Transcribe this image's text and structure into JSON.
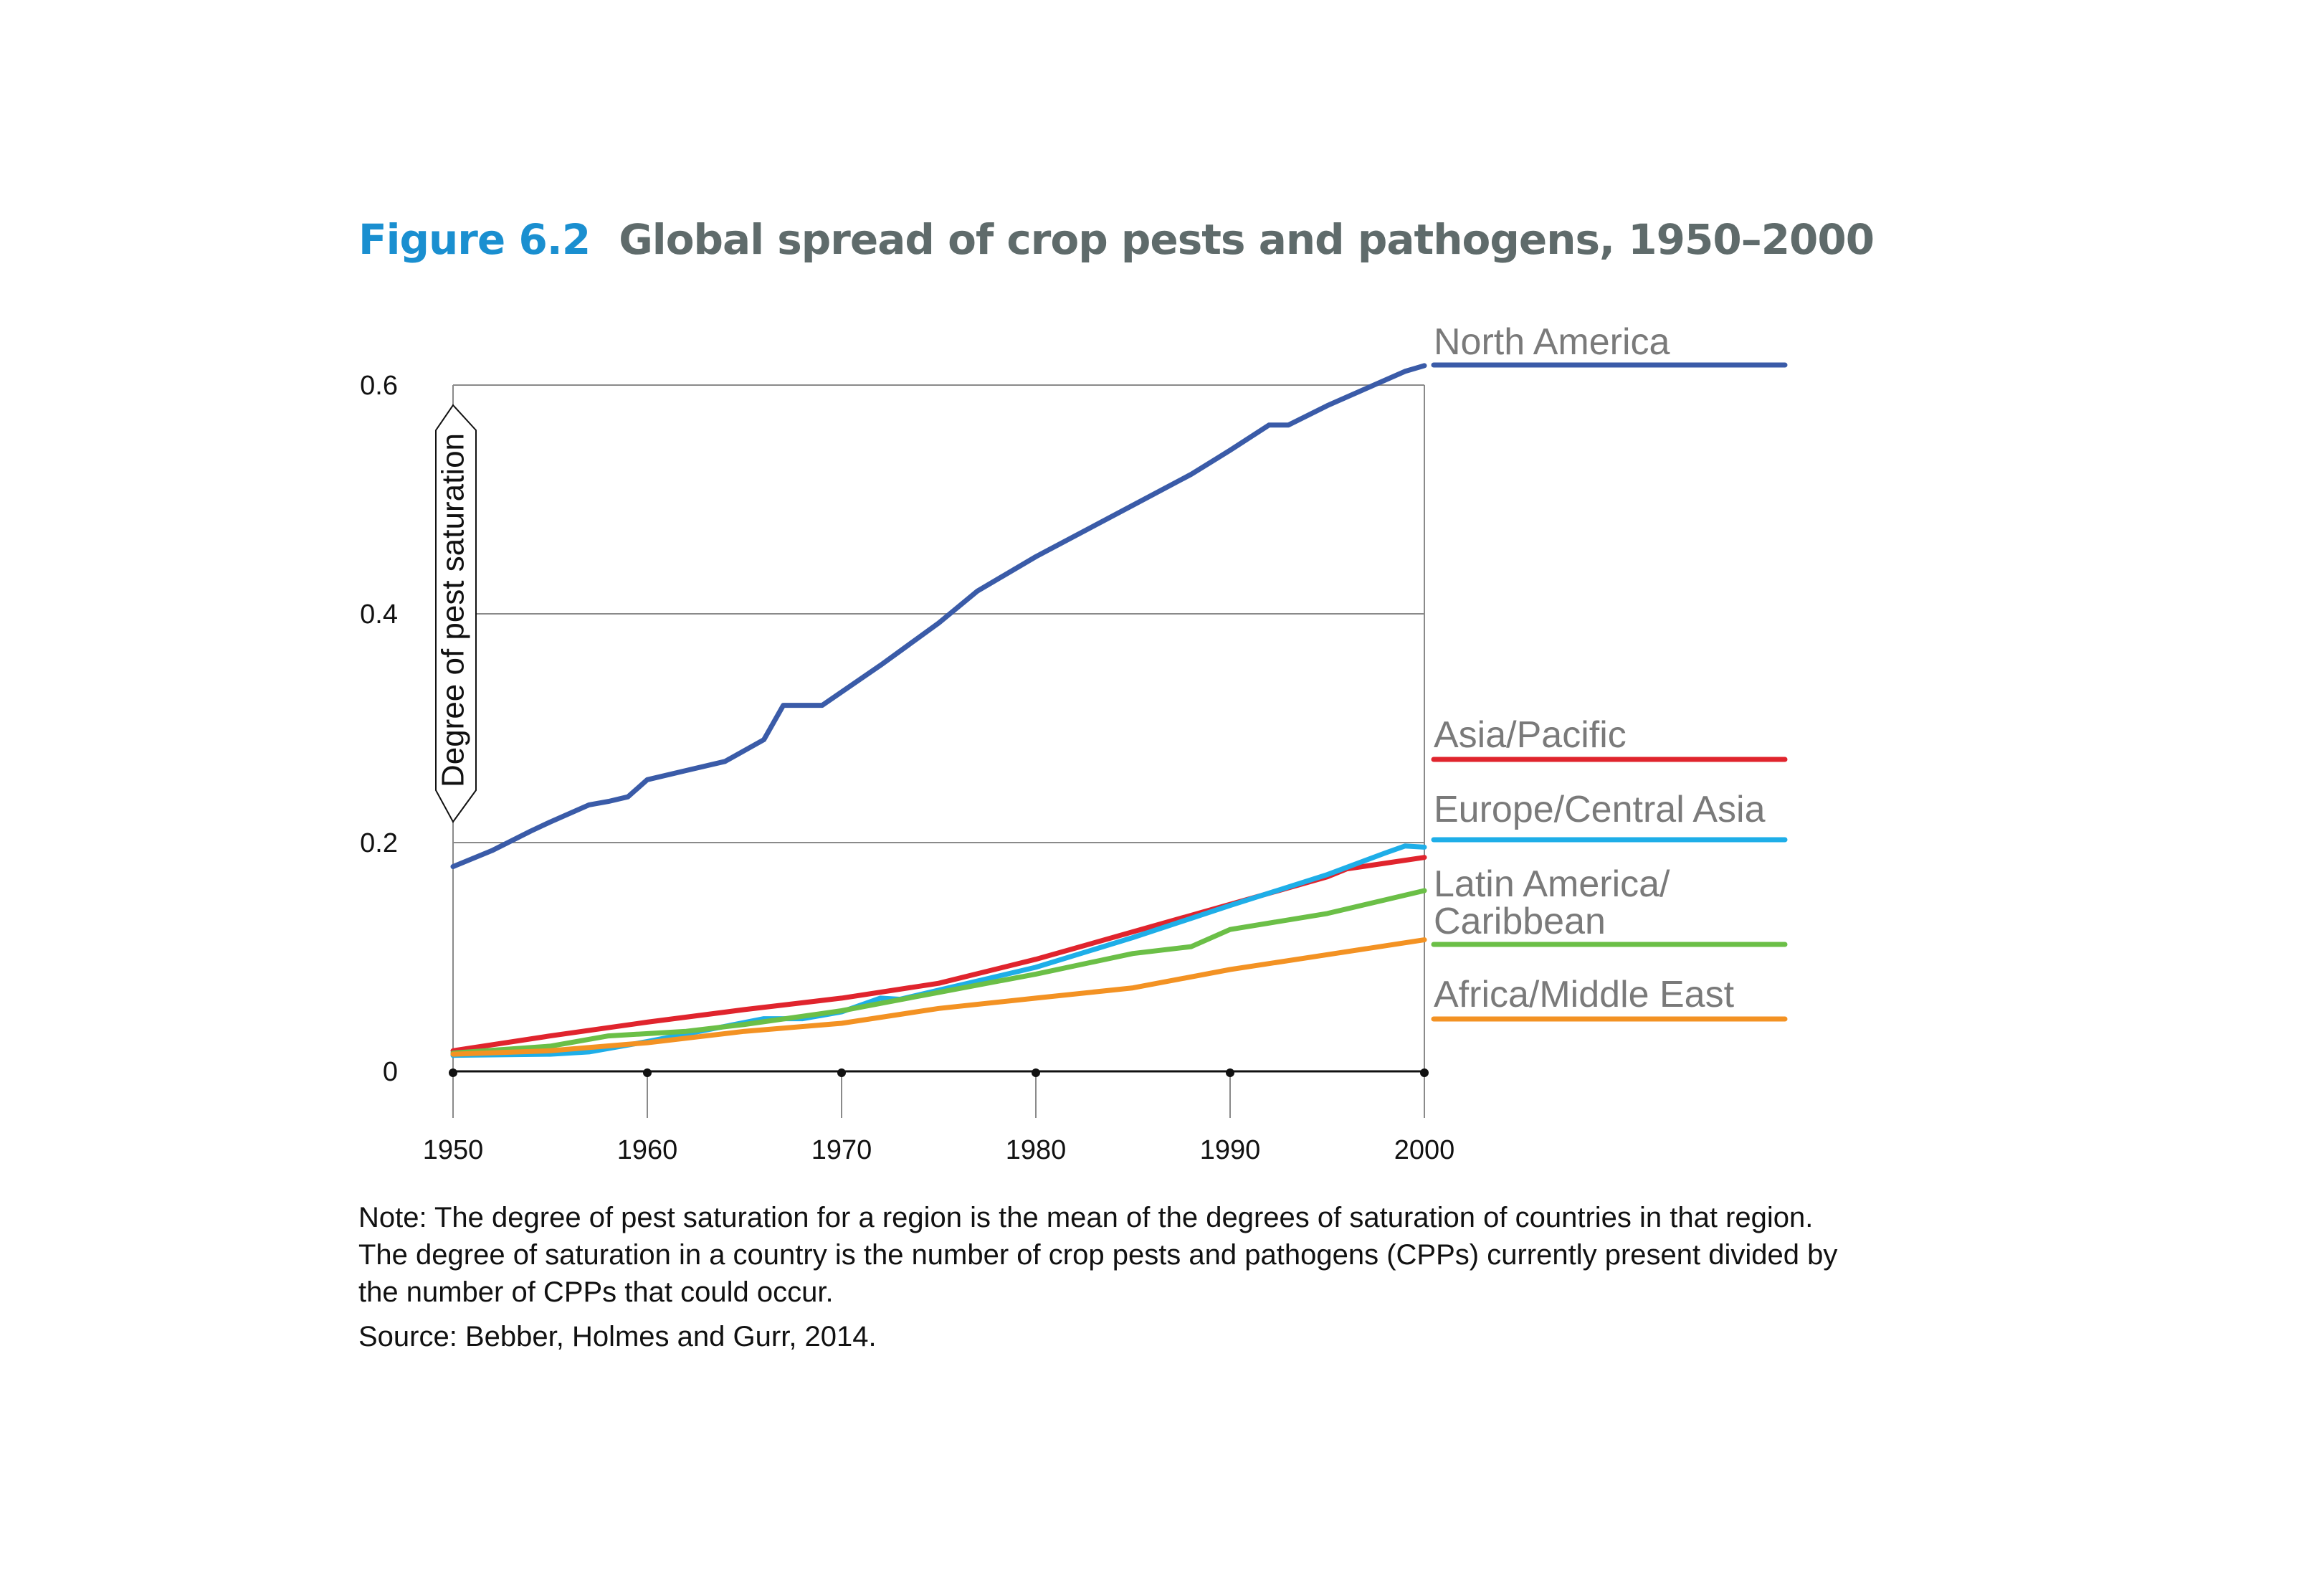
{
  "figure": {
    "number": "Figure 6.2",
    "title": "Global spread of crop pests and pathogens, 1950–2000"
  },
  "note": "Note: The degree of pest saturation for a region is the mean of the degrees of saturation of countries in that region. The degree of saturation in a country is the number of crop pests and pathogens (CPPs) currently present divided by the number of CPPs that could occur.",
  "source": "Source: Bebber, Holmes and Gurr, 2014.",
  "chart_data": {
    "type": "line",
    "ylabel": "Degree of pest saturation",
    "xlim": [
      1950,
      2000
    ],
    "ylim": [
      0,
      0.6
    ],
    "xticks": [
      "1950",
      "1960",
      "1970",
      "1980",
      "1990",
      "2000"
    ],
    "yticks": [
      "0",
      "0.2",
      "0.4",
      "0.6"
    ],
    "grid": "horizontal",
    "legend": "right, labels at line ends",
    "series": [
      {
        "name": "North America",
        "color": "#3a5ba8",
        "points": [
          [
            1950,
            0.179
          ],
          [
            1952,
            0.193
          ],
          [
            1954,
            0.21
          ],
          [
            1955,
            0.218
          ],
          [
            1957,
            0.233
          ],
          [
            1958,
            0.236
          ],
          [
            1959,
            0.24
          ],
          [
            1960,
            0.255
          ],
          [
            1962,
            0.263
          ],
          [
            1964,
            0.271
          ],
          [
            1966,
            0.29
          ],
          [
            1967,
            0.32
          ],
          [
            1969,
            0.32
          ],
          [
            1972,
            0.355
          ],
          [
            1975,
            0.392
          ],
          [
            1977,
            0.42
          ],
          [
            1980,
            0.45
          ],
          [
            1985,
            0.495
          ],
          [
            1988,
            0.522
          ],
          [
            1990,
            0.543
          ],
          [
            1992,
            0.565
          ],
          [
            1993,
            0.565
          ],
          [
            1995,
            0.582
          ],
          [
            1997,
            0.597
          ],
          [
            1999,
            0.612
          ],
          [
            2000,
            0.617
          ]
        ]
      },
      {
        "name": "Asia/Pacific",
        "color": "#e0242d",
        "points": [
          [
            1950,
            0.018
          ],
          [
            1955,
            0.031
          ],
          [
            1960,
            0.043
          ],
          [
            1965,
            0.054
          ],
          [
            1970,
            0.064
          ],
          [
            1975,
            0.077
          ],
          [
            1980,
            0.098
          ],
          [
            1985,
            0.122
          ],
          [
            1990,
            0.146
          ],
          [
            1995,
            0.17
          ],
          [
            1996,
            0.177
          ],
          [
            2000,
            0.187
          ]
        ]
      },
      {
        "name": "Europe/Central Asia",
        "color": "#1eaee8",
        "points": [
          [
            1950,
            0.014
          ],
          [
            1955,
            0.015
          ],
          [
            1957,
            0.017
          ],
          [
            1960,
            0.026
          ],
          [
            1963,
            0.036
          ],
          [
            1966,
            0.046
          ],
          [
            1968,
            0.046
          ],
          [
            1970,
            0.052
          ],
          [
            1972,
            0.064
          ],
          [
            1973,
            0.063
          ],
          [
            1975,
            0.071
          ],
          [
            1980,
            0.091
          ],
          [
            1985,
            0.117
          ],
          [
            1990,
            0.145
          ],
          [
            1995,
            0.172
          ],
          [
            1998,
            0.191
          ],
          [
            1999,
            0.197
          ],
          [
            2000,
            0.196
          ]
        ]
      },
      {
        "name": "Latin America/ Caribbean",
        "color": "#6bbf47",
        "points": [
          [
            1950,
            0.016
          ],
          [
            1955,
            0.022
          ],
          [
            1958,
            0.031
          ],
          [
            1962,
            0.035
          ],
          [
            1965,
            0.041
          ],
          [
            1970,
            0.053
          ],
          [
            1975,
            0.069
          ],
          [
            1980,
            0.085
          ],
          [
            1985,
            0.103
          ],
          [
            1988,
            0.109
          ],
          [
            1990,
            0.124
          ],
          [
            1995,
            0.138
          ],
          [
            2000,
            0.158
          ]
        ]
      },
      {
        "name": "Africa/Middle East",
        "color": "#f39223",
        "points": [
          [
            1950,
            0.015
          ],
          [
            1955,
            0.018
          ],
          [
            1960,
            0.025
          ],
          [
            1965,
            0.035
          ],
          [
            1970,
            0.042
          ],
          [
            1975,
            0.055
          ],
          [
            1980,
            0.064
          ],
          [
            1985,
            0.073
          ],
          [
            1990,
            0.089
          ],
          [
            1995,
            0.102
          ],
          [
            2000,
            0.115
          ]
        ]
      }
    ]
  }
}
